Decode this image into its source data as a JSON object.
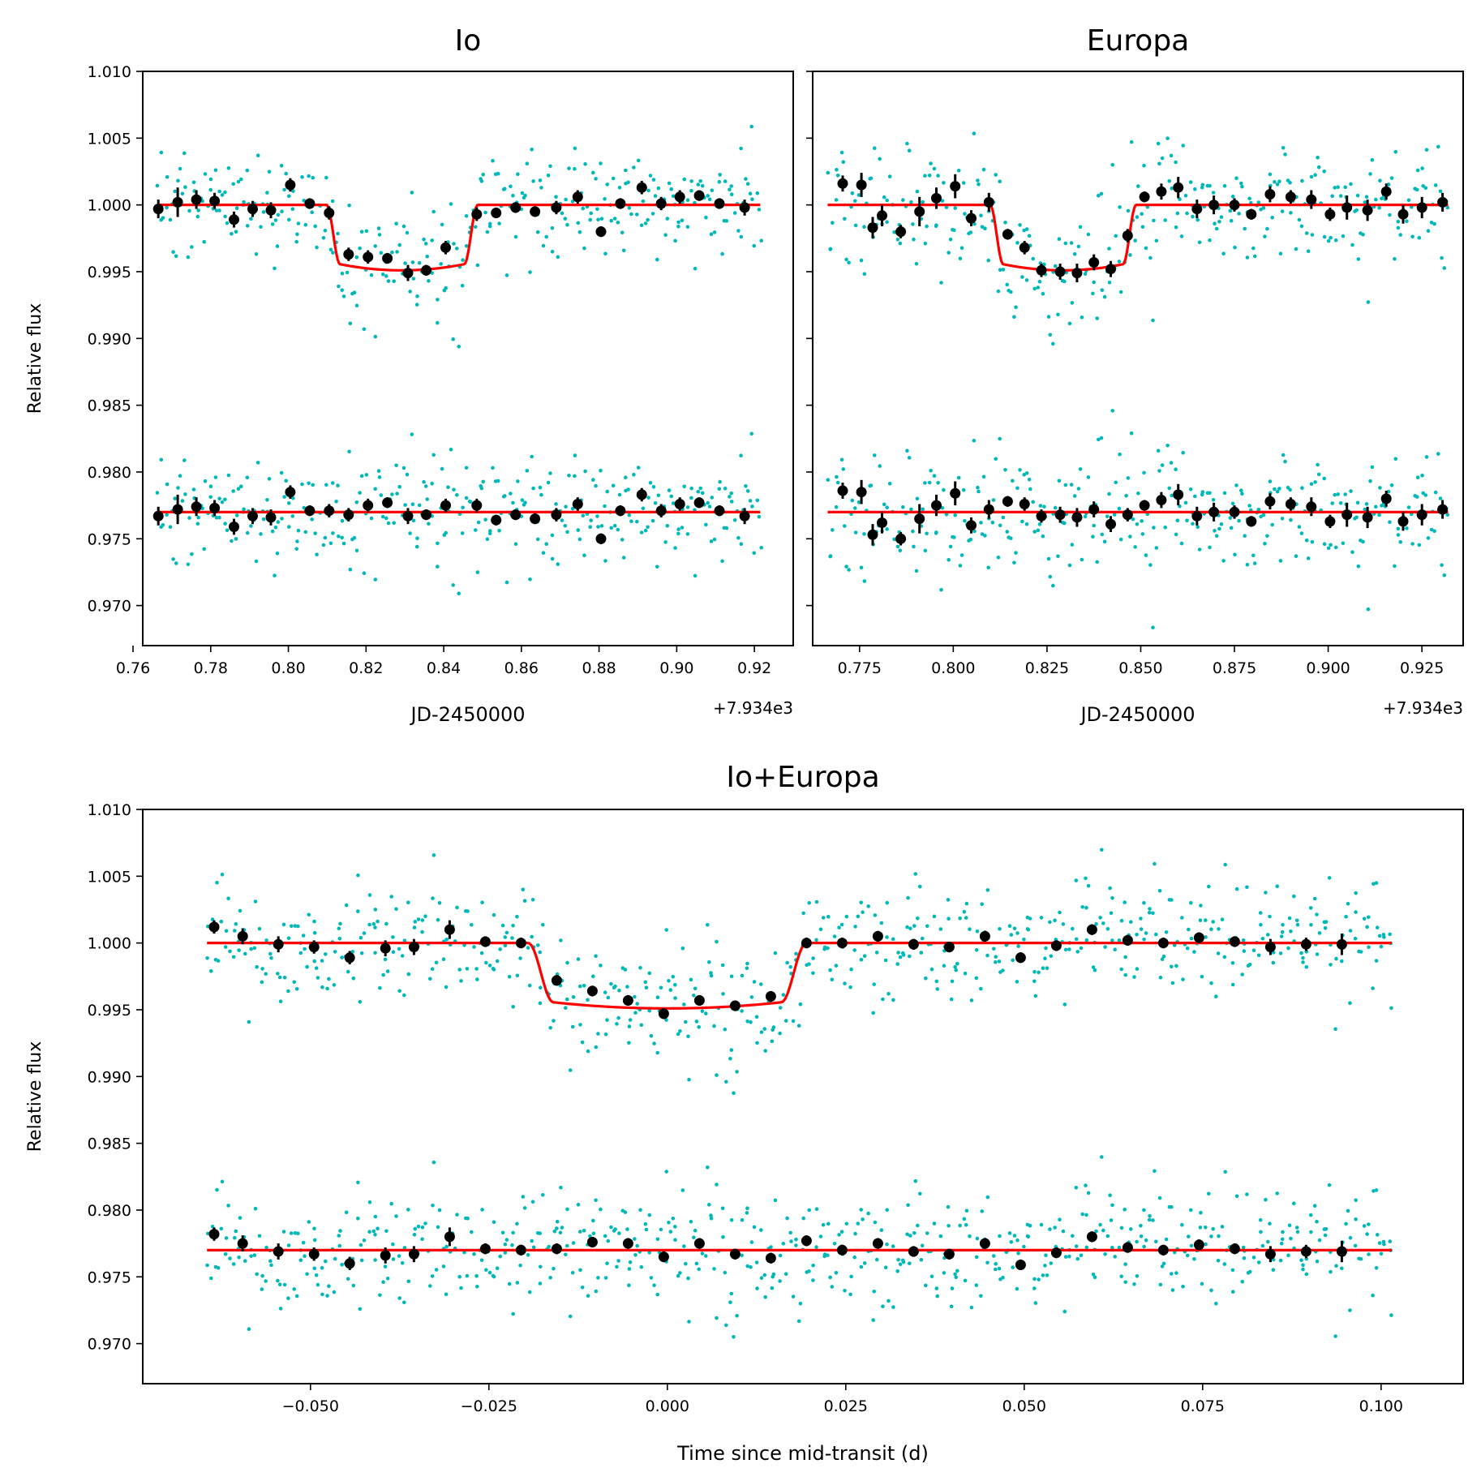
{
  "colors": {
    "raw": "#00b8b8",
    "binned": "#000000",
    "model": "#ff0000",
    "axis": "#000000"
  },
  "chart_data": [
    {
      "id": "io",
      "type": "scatter",
      "title": "Io",
      "xlabel": "JD-2450000",
      "ylabel": "Relative flux",
      "offset_label": "+7.934e3",
      "xlim": [
        0.7625,
        0.93
      ],
      "ylim": [
        0.967,
        1.01
      ],
      "xticks": [
        0.76,
        0.78,
        0.8,
        0.82,
        0.84,
        0.86,
        0.88,
        0.9,
        0.92
      ],
      "xtick_labels": [
        "0.76",
        "0.78",
        "0.80",
        "0.82",
        "0.84",
        "0.86",
        "0.88",
        "0.90",
        "0.92"
      ],
      "yticks": [
        0.97,
        0.975,
        0.98,
        0.985,
        0.99,
        0.995,
        1.0,
        1.005,
        1.01
      ],
      "ytick_labels": [
        "0.970",
        "0.975",
        "0.980",
        "0.985",
        "0.990",
        "0.995",
        "1.000",
        "1.005",
        "1.010"
      ],
      "show_ytick_labels": true,
      "transit": {
        "t0": 0.8293,
        "half_width": 0.0195,
        "ingress": 0.0035,
        "depth": 0.0049
      },
      "raw_range": [
        0.7665,
        0.9215
      ],
      "raw_scatter": 0.0021,
      "residual_offset": -0.023,
      "binned": {
        "x": [
          0.7665,
          0.7715,
          0.7763,
          0.781,
          0.786,
          0.7908,
          0.7955,
          0.8005,
          0.8055,
          0.8105,
          0.8155,
          0.8205,
          0.8255,
          0.8308,
          0.8355,
          0.8405,
          0.8485,
          0.8535,
          0.8585,
          0.8635,
          0.869,
          0.8745,
          0.8805,
          0.8855,
          0.891,
          0.896,
          0.9008,
          0.9058,
          0.911,
          0.9175
        ],
        "y": [
          0.9997,
          1.0002,
          1.0004,
          1.0003,
          0.9989,
          0.9997,
          0.9996,
          1.0015,
          1.0001,
          0.9994,
          0.9963,
          0.9961,
          0.996,
          0.9949,
          0.9951,
          0.9968,
          0.9993,
          0.9994,
          0.9998,
          0.9995,
          0.9998,
          1.0006,
          0.998,
          1.0001,
          1.0013,
          1.0001,
          1.0006,
          1.0007,
          1.0001,
          0.9998
        ],
        "err": [
          0.0007,
          0.0011,
          0.0007,
          0.0006,
          0.0006,
          0.0006,
          0.0006,
          0.0005,
          0.0004,
          0.0005,
          0.0005,
          0.0005,
          0.0004,
          0.0006,
          0.0004,
          0.0005,
          0.0005,
          0.0004,
          0.0004,
          0.0004,
          0.0005,
          0.0005,
          0.0004,
          0.0004,
          0.0005,
          0.0005,
          0.0005,
          0.0004,
          0.0004,
          0.0006
        ],
        "res": [
          0.9767,
          0.9772,
          0.9774,
          0.9773,
          0.9759,
          0.9767,
          0.9766,
          0.9785,
          0.9771,
          0.9771,
          0.9768,
          0.9775,
          0.9777,
          0.9767,
          0.9768,
          0.9775,
          0.9775,
          0.9764,
          0.9768,
          0.9765,
          0.9768,
          0.9776,
          0.975,
          0.9771,
          0.9783,
          0.9771,
          0.9776,
          0.9777,
          0.9771,
          0.9767
        ]
      }
    },
    {
      "id": "europa",
      "type": "scatter",
      "title": "Europa",
      "xlabel": "JD-2450000",
      "ylabel": "",
      "offset_label": "+7.934e3",
      "xlim": [
        0.7625,
        0.936
      ],
      "ylim": [
        0.967,
        1.01
      ],
      "xticks": [
        0.775,
        0.8,
        0.825,
        0.85,
        0.875,
        0.9,
        0.925
      ],
      "xtick_labels": [
        "0.775",
        "0.800",
        "0.825",
        "0.850",
        "0.875",
        "0.900",
        "0.925"
      ],
      "yticks": [
        0.97,
        0.975,
        0.98,
        0.985,
        0.99,
        0.995,
        1.0,
        1.005,
        1.01
      ],
      "ytick_labels": [
        "0.970",
        "0.975",
        "0.980",
        "0.985",
        "0.990",
        "0.995",
        "1.000",
        "1.005",
        "1.010"
      ],
      "show_ytick_labels": false,
      "transit": {
        "t0": 0.8293,
        "half_width": 0.0195,
        "ingress": 0.0035,
        "depth": 0.0049
      },
      "raw_range": [
        0.7665,
        0.932
      ],
      "raw_scatter": 0.0024,
      "residual_offset": -0.023,
      "binned": {
        "x": [
          0.7705,
          0.7755,
          0.7785,
          0.781,
          0.786,
          0.791,
          0.7955,
          0.8005,
          0.8048,
          0.8095,
          0.8145,
          0.819,
          0.8235,
          0.8285,
          0.833,
          0.8375,
          0.842,
          0.8465,
          0.851,
          0.8555,
          0.86,
          0.865,
          0.8695,
          0.875,
          0.8795,
          0.8845,
          0.89,
          0.8955,
          0.9005,
          0.905,
          0.9105,
          0.9155,
          0.92,
          0.925,
          0.9305
        ],
        "y": [
          1.0016,
          1.0015,
          0.9983,
          0.9992,
          0.998,
          0.9995,
          1.0005,
          1.0014,
          0.999,
          1.0002,
          0.9978,
          0.9968,
          0.9951,
          0.995,
          0.9949,
          0.9957,
          0.9952,
          0.9977,
          1.0006,
          1.001,
          1.0013,
          0.9997,
          1.0,
          1.0,
          0.9993,
          1.0008,
          1.0006,
          1.0004,
          0.9993,
          0.9998,
          0.9996,
          1.001,
          0.9993,
          0.9998,
          1.0002
        ],
        "err": [
          0.0006,
          0.0009,
          0.0008,
          0.0008,
          0.0005,
          0.0011,
          0.0008,
          0.0009,
          0.0006,
          0.0007,
          0.0004,
          0.0005,
          0.0005,
          0.0006,
          0.0007,
          0.0006,
          0.0006,
          0.0005,
          0.0004,
          0.0006,
          0.0008,
          0.0007,
          0.0007,
          0.0005,
          0.0004,
          0.0006,
          0.0005,
          0.0007,
          0.0005,
          0.0009,
          0.0008,
          0.0006,
          0.0007,
          0.0008,
          0.0007
        ],
        "res": [
          0.9786,
          0.9785,
          0.9753,
          0.9762,
          0.975,
          0.9765,
          0.9775,
          0.9784,
          0.976,
          0.9772,
          0.9778,
          0.9776,
          0.9767,
          0.9768,
          0.9766,
          0.9772,
          0.9761,
          0.9768,
          0.9775,
          0.9779,
          0.9783,
          0.9767,
          0.977,
          0.977,
          0.9763,
          0.9778,
          0.9776,
          0.9774,
          0.9763,
          0.9768,
          0.9766,
          0.978,
          0.9763,
          0.9768,
          0.9772
        ]
      }
    },
    {
      "id": "combined",
      "type": "scatter",
      "title": "Io+Europa",
      "xlabel": "Time since mid-transit (d)",
      "ylabel": "Relative flux",
      "offset_label": "",
      "xlim": [
        -0.0735,
        0.1115
      ],
      "ylim": [
        0.967,
        1.01
      ],
      "xticks": [
        -0.05,
        -0.025,
        0.0,
        0.025,
        0.05,
        0.075,
        0.1
      ],
      "xtick_labels": [
        "−0.050",
        "−0.025",
        "0.000",
        "0.025",
        "0.050",
        "0.075",
        "0.100"
      ],
      "yticks": [
        0.97,
        0.975,
        0.98,
        0.985,
        0.99,
        0.995,
        1.0,
        1.005,
        1.01
      ],
      "ytick_labels": [
        "0.970",
        "0.975",
        "0.980",
        "0.985",
        "0.990",
        "0.995",
        "1.000",
        "1.005",
        "1.010"
      ],
      "show_ytick_labels": true,
      "transit": {
        "t0": 0.0,
        "half_width": 0.0195,
        "ingress": 0.0035,
        "depth": 0.0049
      },
      "raw_range": [
        -0.0645,
        0.1015
      ],
      "raw_scatter": 0.0022,
      "residual_offset": -0.023,
      "binned": {
        "x": [
          -0.0635,
          -0.0595,
          -0.0545,
          -0.0495,
          -0.0445,
          -0.0395,
          -0.0355,
          -0.0305,
          -0.0255,
          -0.0205,
          -0.0155,
          -0.0105,
          -0.0055,
          -0.0005,
          0.0045,
          0.0095,
          0.0145,
          0.0195,
          0.0245,
          0.0295,
          0.0345,
          0.0395,
          0.0445,
          0.0495,
          0.0545,
          0.0595,
          0.0645,
          0.0695,
          0.0745,
          0.0795,
          0.0845,
          0.0895,
          0.0945
        ],
        "y": [
          1.0012,
          1.0005,
          0.9999,
          0.9997,
          0.9989,
          0.9996,
          0.9997,
          1.001,
          1.0001,
          1.0,
          0.9972,
          0.9964,
          0.9957,
          0.9947,
          0.9957,
          0.9953,
          0.996,
          1.0,
          1.0,
          1.0005,
          0.9999,
          0.9997,
          1.0005,
          0.9989,
          0.9998,
          1.001,
          1.0002,
          1.0,
          1.0004,
          1.0001,
          0.9997,
          0.9999,
          0.9999
        ],
        "err": [
          0.0005,
          0.0006,
          0.0006,
          0.0005,
          0.0005,
          0.0006,
          0.0006,
          0.0007,
          0.0004,
          0.0004,
          0.0004,
          0.0004,
          0.0004,
          0.0004,
          0.0004,
          0.0004,
          0.0004,
          0.0004,
          0.0004,
          0.0004,
          0.0004,
          0.0004,
          0.0004,
          0.0004,
          0.0004,
          0.0004,
          0.0004,
          0.0004,
          0.0004,
          0.0004,
          0.0006,
          0.0005,
          0.0008
        ],
        "res": [
          0.9782,
          0.9775,
          0.9769,
          0.9767,
          0.976,
          0.9766,
          0.9767,
          0.978,
          0.9771,
          0.977,
          0.9771,
          0.9776,
          0.9775,
          0.9765,
          0.9775,
          0.9767,
          0.9764,
          0.9777,
          0.977,
          0.9775,
          0.9769,
          0.9767,
          0.9775,
          0.9759,
          0.9768,
          0.978,
          0.9772,
          0.977,
          0.9774,
          0.9771,
          0.9767,
          0.9769,
          0.9769
        ]
      }
    }
  ]
}
